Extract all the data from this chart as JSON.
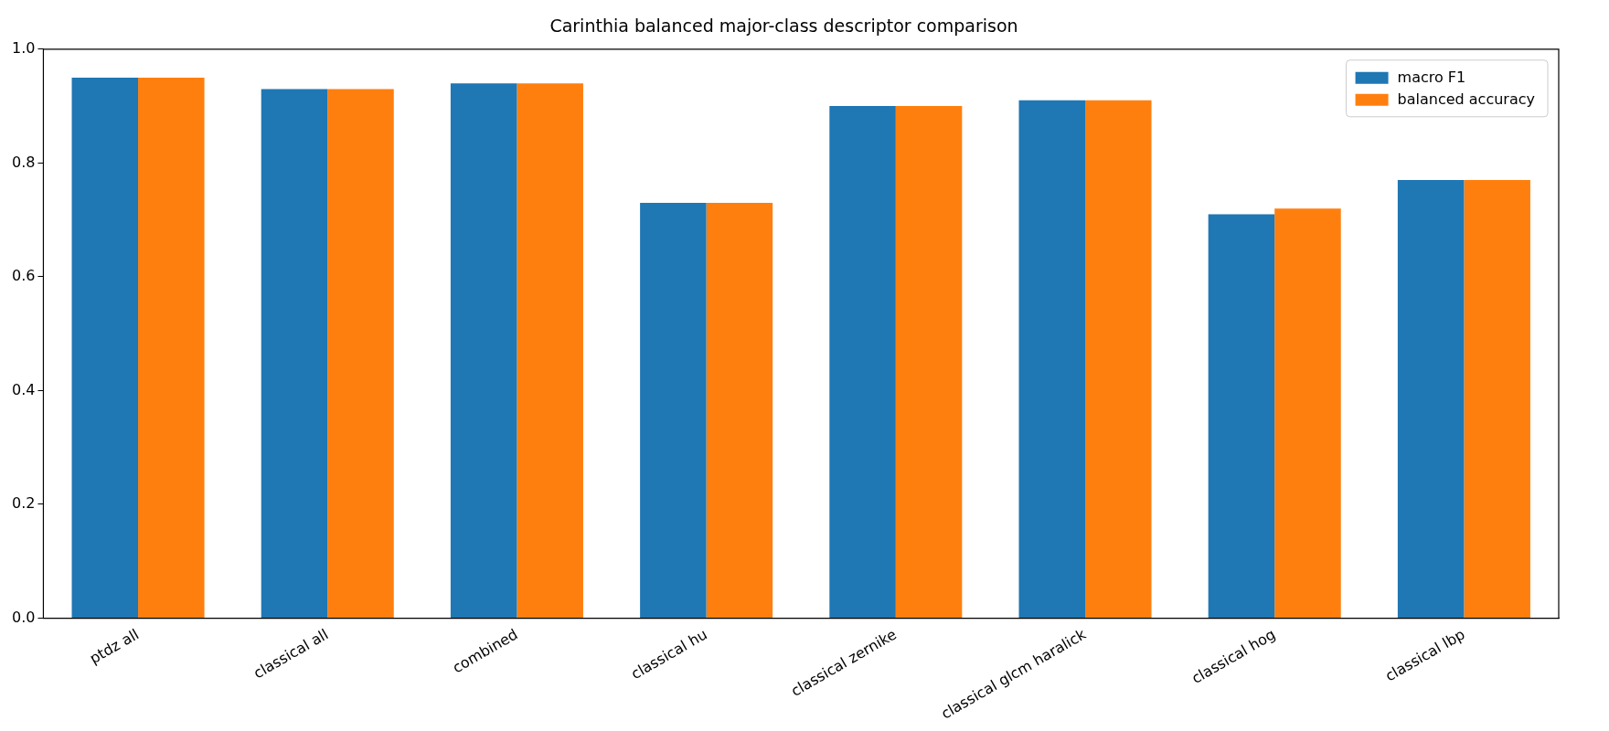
{
  "chart_data": {
    "type": "bar",
    "title": "Carinthia balanced major-class descriptor comparison",
    "categories": [
      "ptdz all",
      "classical all",
      "combined",
      "classical hu",
      "classical zernike",
      "classical glcm haralick",
      "classical hog",
      "classical lbp"
    ],
    "series": [
      {
        "name": "macro F1",
        "color": "#1f77b4",
        "values": [
          0.95,
          0.93,
          0.94,
          0.73,
          0.9,
          0.91,
          0.71,
          0.77
        ]
      },
      {
        "name": "balanced accuracy",
        "color": "#ff7f0e",
        "values": [
          0.95,
          0.93,
          0.94,
          0.73,
          0.9,
          0.91,
          0.72,
          0.77
        ]
      }
    ],
    "ylim": [
      0,
      1
    ],
    "yticks": [
      {
        "value": 0,
        "label": "0.0"
      },
      {
        "value": 0.2,
        "label": "0.2"
      },
      {
        "value": 0.4,
        "label": "0.4"
      },
      {
        "value": 0.6,
        "label": "0.6"
      },
      {
        "value": 0.8,
        "label": "0.8"
      },
      {
        "value": 1,
        "label": "1.0"
      }
    ],
    "grid": false,
    "legend": "top right"
  }
}
